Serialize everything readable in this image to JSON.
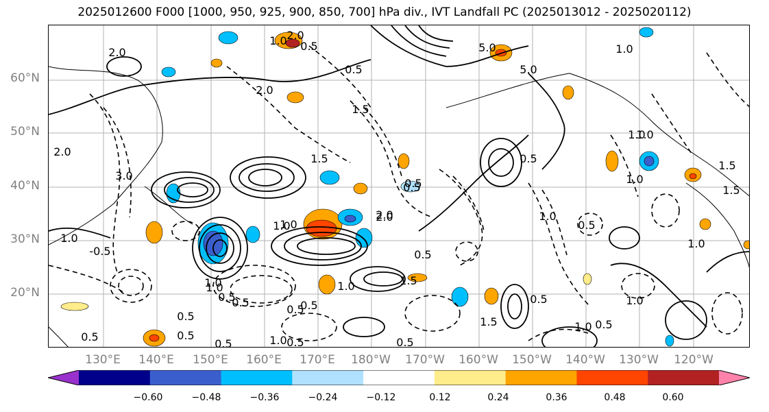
{
  "title": "2025012600 F000 [1000, 950, 925, 900, 850, 700] hPa div., IVT Landfall PC (2025013012 - 2025020112)",
  "map": {
    "lat_labels": [
      "60°N",
      "50°N",
      "40°N",
      "30°N",
      "20°N"
    ],
    "lon_labels": [
      "130°E",
      "140°E",
      "150°E",
      "160°E",
      "170°E",
      "180°W",
      "170°W",
      "160°W",
      "150°W",
      "140°W",
      "130°W",
      "120°W"
    ],
    "contour_labels": [
      "2.0",
      "1.0",
      "2.0",
      "0.5",
      "0.5",
      "5.0",
      "5.0",
      "1.0",
      "2.0",
      "1.5",
      "1.5",
      "1.0",
      "3.0",
      "2.0",
      "1.0",
      "0.5",
      "1.0",
      "2.0",
      "0.5",
      "1.0",
      "-0.5",
      "1.0",
      "0.5",
      "0.5",
      "1.5",
      "0.5",
      "1.0",
      "1.5",
      "1.5",
      "0.5",
      "0.5",
      "2.0",
      "0.5",
      "1.0",
      "0.5",
      "0.5",
      "0.5",
      "0.5",
      "1.0",
      "0.5",
      "1.0",
      "1.0",
      "1.0",
      "0.5",
      "0.5",
      "0.5",
      "0.5",
      "1.0",
      "1.0",
      "1.5",
      "1.0"
    ]
  },
  "colorbar": {
    "ticks": [
      "−0.60",
      "−0.48",
      "−0.36",
      "−0.24",
      "−0.12",
      "0.12",
      "0.24",
      "0.36",
      "0.48",
      "0.60"
    ],
    "colors": [
      "#9932cc",
      "#00008b",
      "#3a5fcd",
      "#00bfff",
      "#b0e2ff",
      "#ffffff",
      "#ffec8b",
      "#ffa500",
      "#ff4500",
      "#b22222",
      "#ff82ab"
    ]
  },
  "colors": {
    "contour": "#000000",
    "grid": "#808080",
    "coast": "#000000"
  }
}
